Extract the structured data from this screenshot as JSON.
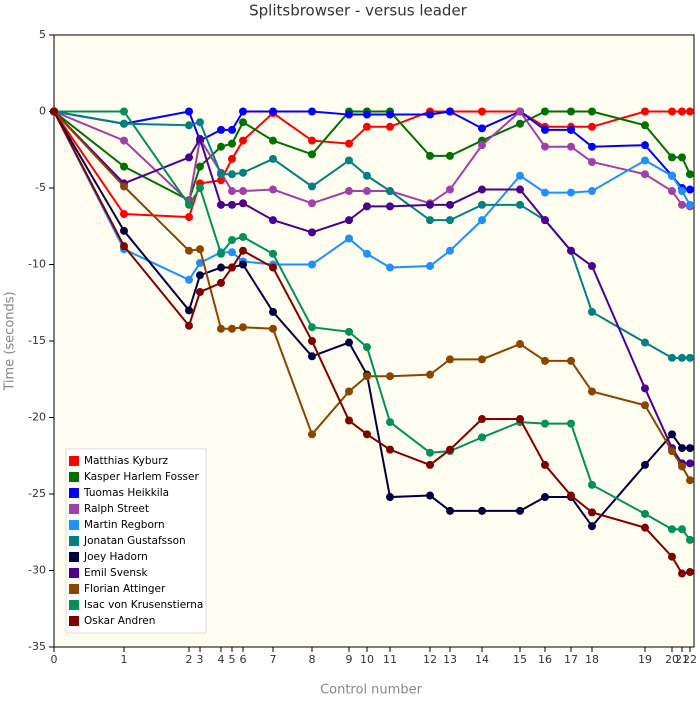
{
  "chart_data": {
    "type": "line",
    "title": "Splitsbrowser - versus leader",
    "xlabel": "Control number",
    "ylabel": "Time (seconds)",
    "x": [
      0,
      70,
      135,
      146,
      167,
      178,
      189,
      219,
      258,
      295,
      313,
      336,
      376,
      396,
      428,
      466,
      491,
      517,
      538,
      591,
      618,
      628,
      636
    ],
    "xlim": [
      0,
      640
    ],
    "xticks": [
      0,
      {
        "value": 70,
        "label": "1"
      },
      {
        "value": 135,
        "label": "2"
      },
      {
        "value": 146,
        "label": "3"
      },
      {
        "value": 167,
        "label": "4"
      },
      {
        "value": 178,
        "label": "5"
      },
      {
        "value": 189,
        "label": "6"
      },
      {
        "value": 219,
        "label": "7"
      },
      {
        "value": 258,
        "label": "8"
      },
      {
        "value": 295,
        "label": "9"
      },
      {
        "value": 313,
        "label": "10"
      },
      {
        "value": 336,
        "label": "11"
      },
      {
        "value": 376,
        "label": "12"
      },
      {
        "value": 396,
        "label": "13"
      },
      {
        "value": 428,
        "label": "14"
      },
      {
        "value": 466,
        "label": "15"
      },
      {
        "value": 491,
        "label": "16"
      },
      {
        "value": 517,
        "label": "17"
      },
      {
        "value": 538,
        "label": "18"
      },
      {
        "value": 591,
        "label": "19"
      },
      {
        "value": 618,
        "label": "20"
      },
      {
        "value": 628,
        "label": "21"
      },
      {
        "value": 636,
        "label": "22"
      }
    ],
    "ylim": [
      -35,
      5
    ],
    "yticks": [
      -35,
      -30,
      -25,
      -20,
      -15,
      -10,
      -5,
      0,
      5
    ],
    "legend": "lower left",
    "series": [
      {
        "name": "Matthias Kyburz",
        "color": "#ff0000",
        "values": [
          0,
          -6.7,
          -6.9,
          -4.7,
          -4.5,
          -3.1,
          -1.9,
          -0.1,
          -1.9,
          -2.1,
          -1.0,
          -1.0,
          0,
          0,
          0,
          0,
          -1.0,
          -1.0,
          -1.0,
          0,
          0,
          0,
          0
        ]
      },
      {
        "name": "Kasper Harlem Fosser",
        "color": "#007000",
        "values": [
          0,
          -3.6,
          -5.8,
          -3.6,
          -2.3,
          -2.1,
          -0.7,
          -1.9,
          -2.8,
          0,
          0,
          0,
          -2.9,
          -2.9,
          -1.9,
          -0.8,
          0,
          0,
          0,
          -0.9,
          -3.0,
          -3.0,
          -4.1
        ]
      },
      {
        "name": "Tuomas Heikkila",
        "color": "#0000ff",
        "values": [
          0,
          -0.8,
          0,
          -1.9,
          -1.2,
          -1.2,
          0,
          0,
          0,
          -0.2,
          -0.2,
          -0.2,
          -0.2,
          0,
          -1.1,
          0,
          -1.2,
          -1.2,
          -2.3,
          -2.2,
          -4.2,
          -5.0,
          -5.1
        ]
      },
      {
        "name": "Ralph Street",
        "color": "#a040a8",
        "values": [
          0,
          -1.9,
          -5.9,
          -1.8,
          -4.0,
          -5.2,
          -5.2,
          -5.1,
          -6.0,
          -5.2,
          -5.2,
          -5.2,
          -6.0,
          -5.1,
          -2.2,
          0,
          -2.3,
          -2.3,
          -3.3,
          -4.1,
          -5.2,
          -6.1,
          -6.2
        ]
      },
      {
        "name": "Martin Regborn",
        "color": "#1e90ff",
        "values": [
          0,
          -9.0,
          -11.0,
          -9.9,
          -9.2,
          -9.2,
          -9.8,
          -10.0,
          -10.0,
          -8.3,
          -9.3,
          -10.2,
          -10.1,
          -9.1,
          -7.1,
          -4.2,
          -5.3,
          -5.3,
          -5.2,
          -3.2,
          -4.2,
          -5.2,
          -6.1
        ]
      },
      {
        "name": "Jonatan Gustafsson",
        "color": "#008080",
        "values": [
          0,
          -0.8,
          -0.9,
          -0.7,
          -4.1,
          -4.1,
          -4.0,
          -3.1,
          -4.9,
          -3.2,
          -4.2,
          -5.2,
          -7.1,
          -7.1,
          -6.1,
          -6.1,
          -7.1,
          -9.1,
          -13.1,
          -15.1,
          -16.1,
          -16.1,
          -16.1
        ]
      },
      {
        "name": "Joey Hadorn",
        "color": "#000040",
        "values": [
          0,
          -7.8,
          -13.0,
          -10.7,
          -10.2,
          -10.2,
          -10.0,
          -13.1,
          -16.0,
          -15.1,
          -17.2,
          -25.2,
          -25.1,
          -26.1,
          -26.1,
          -26.1,
          -25.2,
          -25.2,
          -27.1,
          -23.1,
          -21.1,
          -22.0,
          -22.0
        ]
      },
      {
        "name": "Emil Svensk",
        "color": "#4b0090",
        "values": [
          0,
          -4.7,
          -3.0,
          -1.8,
          -6.1,
          -6.1,
          -6.0,
          -7.1,
          -7.9,
          -7.1,
          -6.2,
          -6.2,
          -6.1,
          -6.1,
          -5.1,
          -5.1,
          -7.1,
          -9.1,
          -10.1,
          -18.1,
          -22.0,
          -23.0,
          -23.0
        ]
      },
      {
        "name": "Florian Attinger",
        "color": "#8b4500",
        "values": [
          0,
          -4.9,
          -9.1,
          -9.0,
          -14.2,
          -14.2,
          -14.1,
          -14.2,
          -21.1,
          -18.3,
          -17.3,
          -17.3,
          -17.2,
          -16.2,
          -16.2,
          -15.2,
          -16.3,
          -16.3,
          -18.3,
          -19.2,
          -22.2,
          -23.2,
          -24.1
        ]
      },
      {
        "name": "Isac von Krusenstierna",
        "color": "#009058",
        "values": [
          0,
          0,
          -6.1,
          -5.0,
          -9.3,
          -8.4,
          -8.2,
          -9.3,
          -14.1,
          -14.4,
          -15.4,
          -20.3,
          -22.3,
          -22.2,
          -21.3,
          -20.3,
          -20.4,
          -20.4,
          -24.4,
          -26.3,
          -27.3,
          -27.3,
          -28.0
        ]
      },
      {
        "name": "Oskar Andren",
        "color": "#800000",
        "values": [
          0,
          -8.8,
          -14.0,
          -11.8,
          -11.2,
          -10.2,
          -9.1,
          -10.2,
          -15.0,
          -20.2,
          -21.1,
          -22.1,
          -23.1,
          -22.1,
          -20.1,
          -20.1,
          -23.1,
          -25.1,
          -26.2,
          -27.2,
          -29.1,
          -30.2,
          -30.1
        ]
      }
    ]
  }
}
